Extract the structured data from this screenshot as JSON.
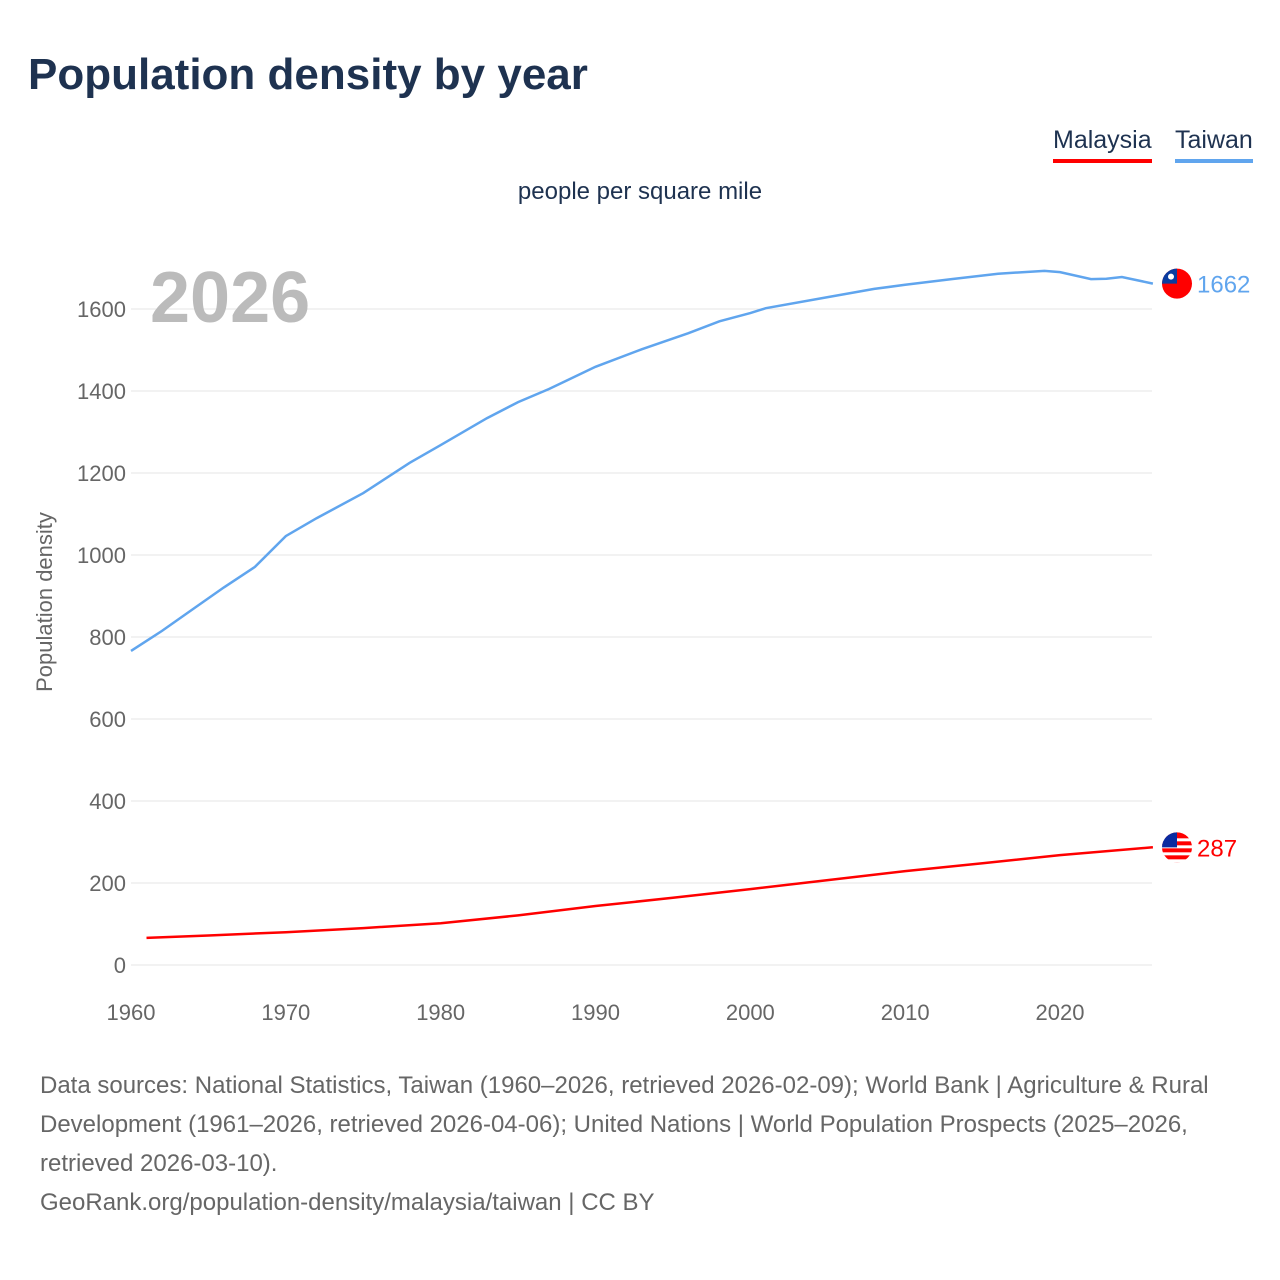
{
  "chart_data": {
    "type": "line",
    "title": "Population density by year",
    "subtitle": "people per square mile",
    "ylabel": "Population density",
    "xlabel": "",
    "year_label": "2026",
    "ylim": [
      0,
      1700
    ],
    "xlim": [
      1960,
      2026
    ],
    "yticks": [
      0,
      200,
      400,
      600,
      800,
      1000,
      1200,
      1400,
      1600
    ],
    "xticks": [
      1960,
      1970,
      1980,
      1990,
      2000,
      2010,
      2020
    ],
    "grid": true,
    "legend_position": "top-right",
    "series": [
      {
        "name": "Malaysia",
        "color": "#ff0000",
        "end_label": "287",
        "x": [
          1961,
          1965,
          1970,
          1975,
          1980,
          1985,
          1990,
          1995,
          2000,
          2005,
          2010,
          2015,
          2020,
          2026
        ],
        "values": [
          66,
          72,
          80,
          90,
          102,
          121,
          144,
          164,
          185,
          207,
          229,
          248,
          268,
          287
        ]
      },
      {
        "name": "Taiwan",
        "color": "#60a5ee",
        "end_label": "1662",
        "x": [
          1960,
          1962,
          1964,
          1966,
          1968,
          1970,
          1972,
          1975,
          1978,
          1980,
          1983,
          1985,
          1987,
          1990,
          1993,
          1996,
          1998,
          2000,
          2001,
          2005,
          2008,
          2010,
          2013,
          2016,
          2019,
          2020,
          2022,
          2023,
          2024,
          2026
        ],
        "values": [
          766,
          815,
          868,
          921,
          971,
          1046,
          1090,
          1151,
          1225,
          1268,
          1334,
          1373,
          1405,
          1459,
          1502,
          1541,
          1570,
          1590,
          1602,
          1629,
          1649,
          1659,
          1673,
          1686,
          1693,
          1690,
          1673,
          1674,
          1678,
          1662
        ]
      }
    ]
  },
  "footer": {
    "sources": "Data sources: National Statistics, Taiwan (1960–2026, retrieved 2026-02-09); World Bank | Agriculture & Rural Development (1961–2026, retrieved 2026-04-06); United Nations | World Population Prospects (2025–2026, retrieved 2026-03-10).",
    "credit": "GeoRank.org/population-density/malaysia/taiwan | CC BY"
  }
}
